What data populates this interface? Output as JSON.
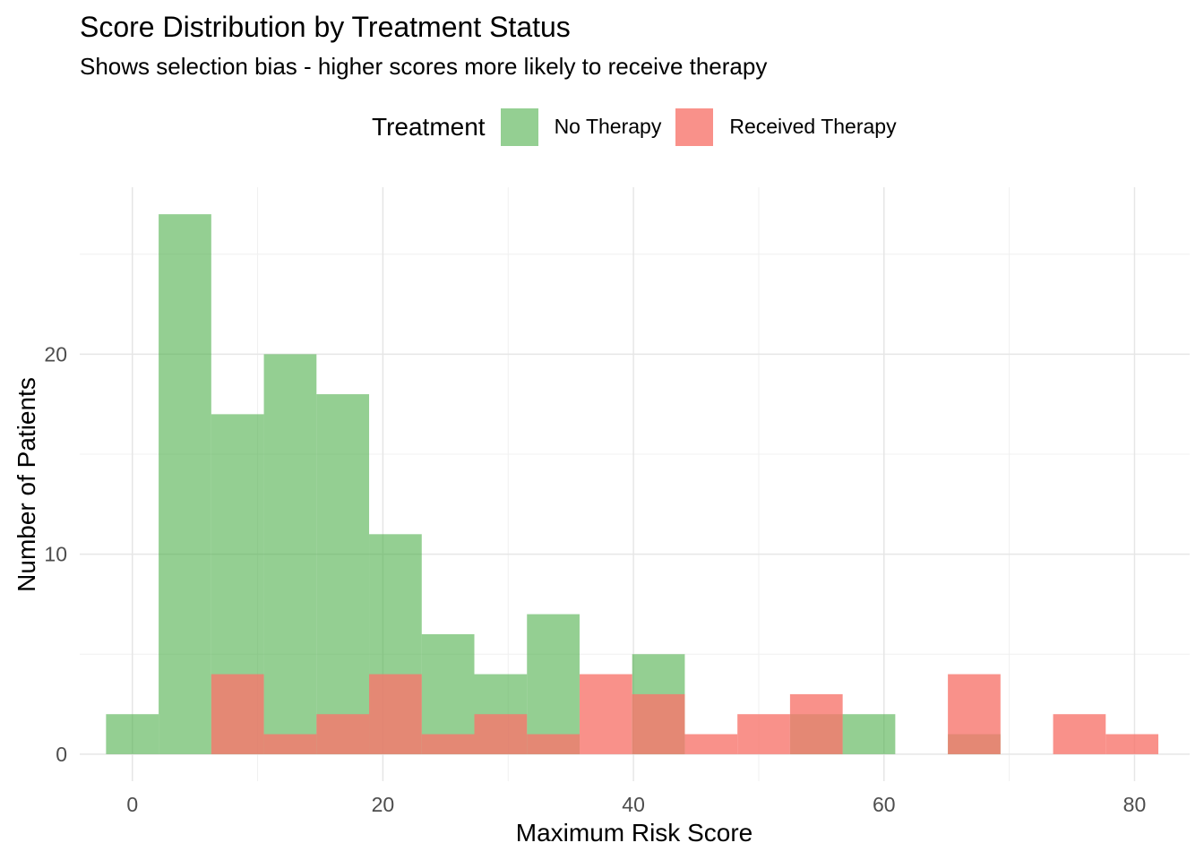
{
  "chart_data": {
    "type": "histogram",
    "title": "Score Distribution by Treatment Status",
    "subtitle": "Shows selection bias - higher scores more likely to receive therapy",
    "xlabel": "Maximum Risk Score",
    "ylabel": "Number of Patients",
    "xlim": [
      -4.2,
      84.4
    ],
    "ylim": [
      -1.35,
      28.35
    ],
    "x_ticks": [
      0,
      20,
      40,
      60,
      80
    ],
    "y_ticks": [
      0,
      10,
      20
    ],
    "grid": true,
    "legend": {
      "title": "Treatment",
      "position": "top",
      "entries": [
        "No Therapy",
        "Received Therapy"
      ]
    },
    "bins": {
      "start": -2.1,
      "width": 4.2,
      "count": 20
    },
    "series": [
      {
        "name": "No Therapy",
        "color": "#4daf4a",
        "opacity": 0.6,
        "counts": [
          2,
          27,
          17,
          20,
          18,
          11,
          6,
          4,
          7,
          0,
          5,
          0,
          0,
          2,
          2,
          0,
          1,
          0,
          0,
          0
        ]
      },
      {
        "name": "Received Therapy",
        "color": "#f8766d",
        "opacity": 0.8,
        "counts": [
          0,
          0,
          4,
          1,
          2,
          4,
          1,
          2,
          1,
          4,
          3,
          1,
          2,
          3,
          0,
          0,
          4,
          0,
          2,
          1
        ]
      }
    ]
  }
}
